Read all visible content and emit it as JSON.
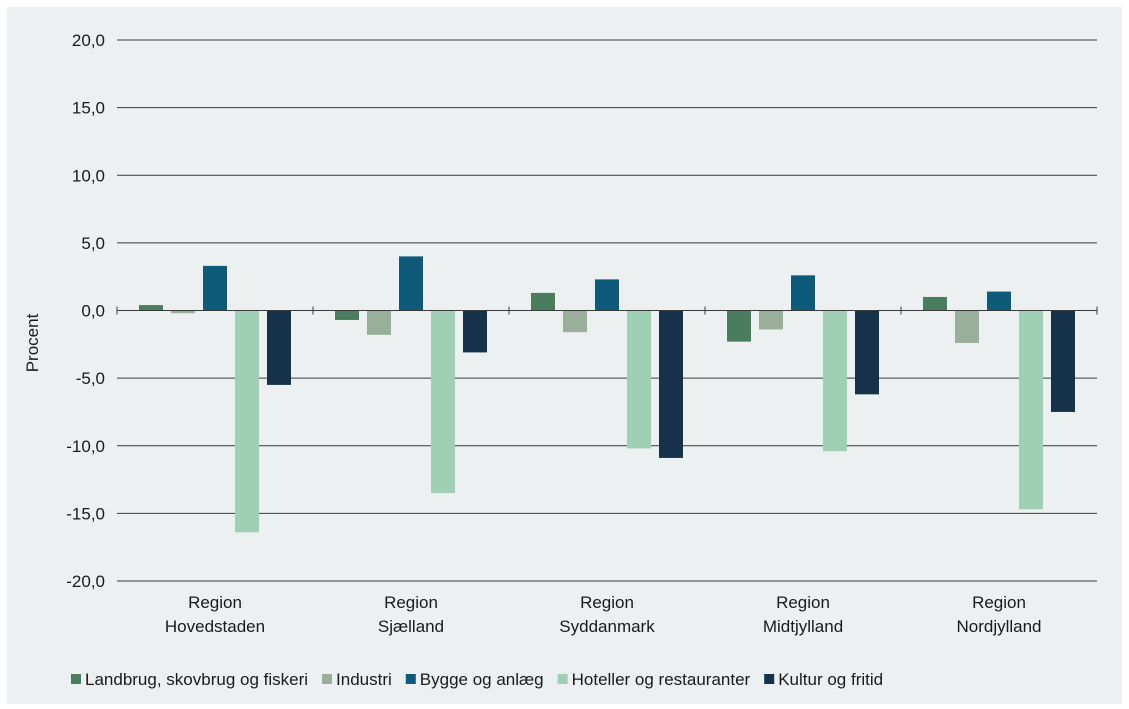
{
  "chart_data": {
    "type": "bar",
    "ylabel": "Procent",
    "ylim": [
      -20,
      20
    ],
    "yticks": [
      "20,0",
      "15,0",
      "10,0",
      "5,0",
      "0,0",
      "-5,0",
      "-10,0",
      "-15,0",
      "-20,0"
    ],
    "ytick_values": [
      20,
      15,
      10,
      5,
      0,
      -5,
      -10,
      -15,
      -20
    ],
    "grid": true,
    "legend_position": "bottom",
    "categories": [
      [
        "Region",
        "Hovedstaden"
      ],
      [
        "Region",
        "Sjælland"
      ],
      [
        "Region",
        "Syddanmark"
      ],
      [
        "Region",
        "Midtjylland"
      ],
      [
        "Region",
        "Nordjylland"
      ]
    ],
    "series": [
      {
        "name": "Landbrug, skovbrug og fiskeri",
        "color": "#4a7c5e",
        "values": [
          0.4,
          -0.7,
          1.3,
          -2.3,
          1.0
        ]
      },
      {
        "name": "Industri",
        "color": "#9aaf9a",
        "values": [
          -0.2,
          -1.8,
          -1.6,
          -1.4,
          -2.4
        ]
      },
      {
        "name": "Bygge og anlæg",
        "color": "#0d5a7a",
        "values": [
          3.3,
          4.0,
          2.3,
          2.6,
          1.4
        ]
      },
      {
        "name": "Hoteller og restauranter",
        "color": "#9fcfb5",
        "values": [
          -16.4,
          -13.5,
          -10.2,
          -10.4,
          -14.7
        ]
      },
      {
        "name": "Kultur og fritid",
        "color": "#15324a",
        "values": [
          -5.5,
          -3.1,
          -10.9,
          -6.2,
          -7.5
        ]
      }
    ]
  }
}
